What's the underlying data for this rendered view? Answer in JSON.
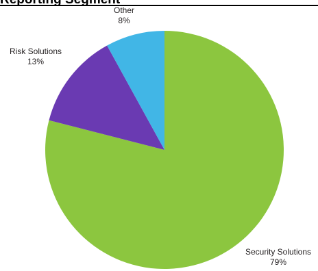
{
  "chart_data": {
    "type": "pie",
    "title": "Reporting Segment",
    "start_angle_deg": 0,
    "direction": "clockwise",
    "slices": [
      {
        "label": "Security Solutions",
        "value": 79,
        "value_label": "79%",
        "color": "#8cc63f"
      },
      {
        "label": "Risk Solutions",
        "value": 13,
        "value_label": "13%",
        "color": "#6a3ab2"
      },
      {
        "label": "Other",
        "value": 8,
        "value_label": "8%",
        "color": "#41b6e6"
      }
    ]
  }
}
